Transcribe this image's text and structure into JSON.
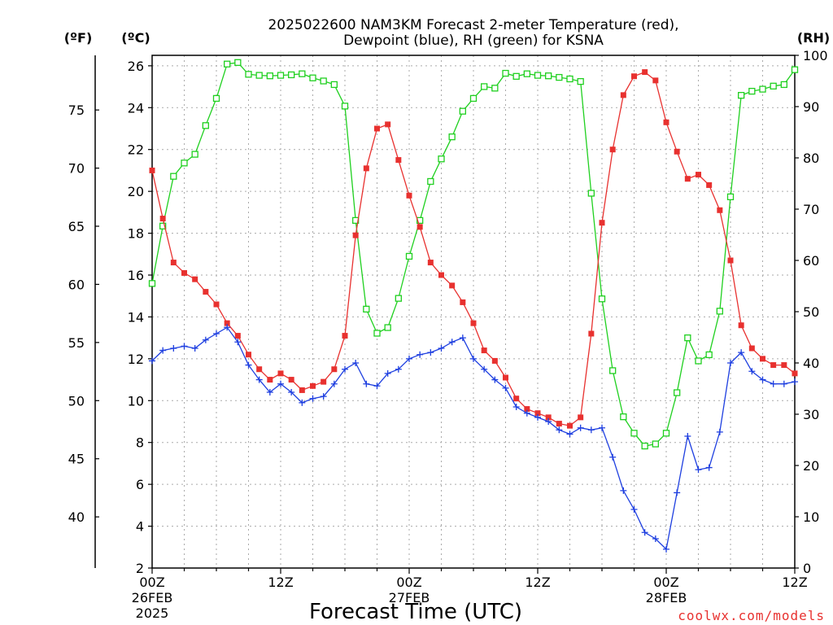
{
  "chart_data": {
    "type": "line",
    "title_lines": [
      "2025022600 NAM3KM Forecast 2-meter Temperature (red),",
      "Dewpoint (blue), RH (green) for KSNA"
    ],
    "xlabel": "Forecast Time (UTC)",
    "credit": "coolwx.com/models",
    "left_unit_f": "(ºF)",
    "left_unit_c": "(ºC)",
    "right_unit": "(RH)",
    "x_range_hours": [
      0,
      60
    ],
    "x_ticks": [
      {
        "hour": 0,
        "lines": [
          "00Z",
          "26FEB",
          "2025"
        ]
      },
      {
        "hour": 12,
        "lines": [
          "12Z"
        ]
      },
      {
        "hour": 24,
        "lines": [
          "00Z",
          "27FEB"
        ]
      },
      {
        "hour": 36,
        "lines": [
          "12Z"
        ]
      },
      {
        "hour": 48,
        "lines": [
          "00Z",
          "28FEB"
        ]
      },
      {
        "hour": 60,
        "lines": [
          "12Z"
        ]
      }
    ],
    "celsius_axis": {
      "range": [
        2,
        26.5
      ],
      "ticks": [
        2,
        4,
        6,
        8,
        10,
        12,
        14,
        16,
        18,
        20,
        22,
        24,
        26
      ]
    },
    "fahrenheit_axis": {
      "ticks": [
        40,
        45,
        50,
        55,
        60,
        65,
        70,
        75
      ]
    },
    "rh_axis": {
      "range": [
        0,
        100
      ],
      "ticks": [
        0,
        10,
        20,
        30,
        40,
        50,
        60,
        70,
        80,
        90,
        100
      ]
    },
    "grid": true,
    "series": [
      {
        "name": "Temperature",
        "axis": "celsius",
        "color": "#e8312f",
        "marker": "filled-square",
        "x": [
          0,
          1,
          2,
          3,
          4,
          5,
          6,
          7,
          8,
          9,
          10,
          11,
          12,
          13,
          14,
          15,
          16,
          17,
          18,
          19,
          20,
          21,
          22,
          23,
          24,
          25,
          26,
          27,
          28,
          29,
          30,
          31,
          32,
          33,
          34,
          35,
          36,
          37,
          38,
          39,
          40,
          41,
          42,
          43,
          44,
          45,
          46,
          47,
          48,
          49,
          50,
          51,
          52,
          53,
          54,
          55,
          56,
          57,
          58,
          59,
          60
        ],
        "values": [
          21.0,
          18.7,
          16.6,
          16.1,
          15.8,
          15.2,
          14.6,
          13.7,
          13.1,
          12.2,
          11.5,
          11.0,
          11.3,
          11.0,
          10.5,
          10.7,
          10.9,
          11.5,
          13.1,
          17.9,
          21.1,
          23.0,
          23.2,
          21.5,
          19.8,
          18.3,
          16.6,
          16.0,
          15.5,
          14.7,
          13.7,
          12.4,
          11.9,
          11.1,
          10.1,
          9.6,
          9.4,
          9.2,
          8.9,
          8.8,
          9.2,
          13.2,
          18.5,
          22.0,
          24.6,
          25.5,
          25.7,
          25.3,
          23.3,
          21.9,
          20.6,
          20.8,
          20.3,
          19.1,
          16.7,
          13.6,
          12.5,
          12.0,
          11.7,
          11.7,
          11.3
        ]
      },
      {
        "name": "Dewpoint",
        "axis": "celsius",
        "color": "#1e3fe0",
        "marker": "plus",
        "x": [
          0,
          1,
          2,
          3,
          4,
          5,
          6,
          7,
          8,
          9,
          10,
          11,
          12,
          13,
          14,
          15,
          16,
          17,
          18,
          19,
          20,
          21,
          22,
          23,
          24,
          25,
          26,
          27,
          28,
          29,
          30,
          31,
          32,
          33,
          34,
          35,
          36,
          37,
          38,
          39,
          40,
          41,
          42,
          43,
          44,
          45,
          46,
          47,
          48,
          49,
          50,
          51,
          52,
          53,
          54,
          55,
          56,
          57,
          58,
          59,
          60
        ],
        "values": [
          11.9,
          12.4,
          12.5,
          12.6,
          12.5,
          12.9,
          13.2,
          13.5,
          12.8,
          11.7,
          11.0,
          10.4,
          10.8,
          10.4,
          9.9,
          10.1,
          10.2,
          10.8,
          11.5,
          11.8,
          10.8,
          10.7,
          11.3,
          11.5,
          12.0,
          12.2,
          12.3,
          12.5,
          12.8,
          13.0,
          12.0,
          11.5,
          11.0,
          10.6,
          9.7,
          9.4,
          9.2,
          9.0,
          8.6,
          8.4,
          8.7,
          8.6,
          8.7,
          7.3,
          5.7,
          4.8,
          3.7,
          3.4,
          2.9,
          5.6,
          8.3,
          6.7,
          6.8,
          8.5,
          11.8,
          12.3,
          11.4,
          11.0,
          10.8,
          10.8,
          10.9
        ]
      },
      {
        "name": "RH",
        "axis": "rh",
        "color": "#1fd01f",
        "marker": "open-square",
        "x": [
          0,
          1,
          2,
          3,
          4,
          5,
          6,
          7,
          8,
          9,
          10,
          11,
          12,
          13,
          14,
          15,
          16,
          17,
          18,
          19,
          20,
          21,
          22,
          23,
          24,
          25,
          26,
          27,
          28,
          29,
          30,
          31,
          32,
          33,
          34,
          35,
          36,
          37,
          38,
          39,
          40,
          41,
          42,
          43,
          44,
          45,
          46,
          47,
          48,
          49,
          50,
          51,
          52,
          53,
          54,
          55,
          56,
          57,
          58,
          59,
          60
        ],
        "values": [
          55.5,
          66.7,
          76.4,
          79.0,
          80.7,
          86.3,
          91.6,
          98.3,
          98.6,
          96.3,
          96.1,
          96.0,
          96.1,
          96.2,
          96.4,
          95.6,
          95.0,
          94.3,
          90.1,
          67.8,
          50.5,
          45.8,
          46.9,
          52.6,
          60.8,
          67.8,
          75.4,
          79.8,
          84.1,
          89.1,
          91.6,
          93.9,
          93.6,
          96.5,
          95.9,
          96.4,
          96.1,
          96.0,
          95.7,
          95.4,
          94.9,
          73.1,
          52.5,
          38.5,
          29.5,
          26.3,
          23.8,
          24.2,
          26.3,
          34.2,
          44.9,
          40.4,
          41.6,
          50.1,
          72.4,
          92.2,
          93.0,
          93.4,
          94.0,
          94.3,
          97.2
        ]
      }
    ]
  }
}
